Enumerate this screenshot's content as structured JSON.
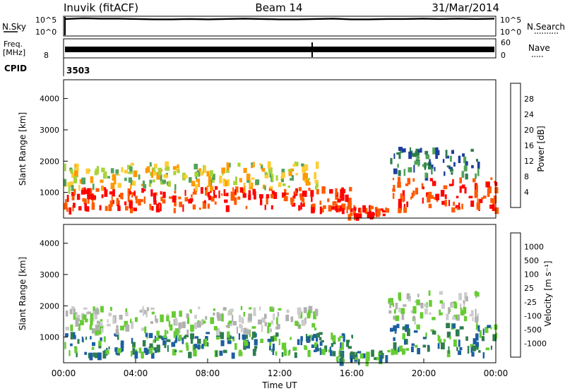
{
  "header": {
    "station": "Inuvik (fitACF)",
    "beam": "Beam 14",
    "date": "31/Mar/2014"
  },
  "colors": {
    "power_scale": [
      "#0000ff",
      "#1c3e9c",
      "#2e7d4e",
      "#52a35a",
      "#a8d33a",
      "#ffcc33",
      "#ff9900",
      "#ff5a00",
      "#ff0000"
    ],
    "velocity_scale": [
      "#ff0000",
      "#ff6600",
      "#ff9900",
      "#cccccc",
      "#b0b0b0",
      "#66cc33",
      "#2e7d4e",
      "#1c5fa0",
      "#1c3e9c"
    ]
  },
  "chart_data": [
    {
      "type": "line",
      "title": "",
      "xlabel": "",
      "ylabel_left": "N.Sky",
      "ylabel_right": "N.Search",
      "y_ticks_left": [
        "10^5",
        "10^0"
      ],
      "y_ticks_right": [
        "10^5",
        "10^0"
      ],
      "series": [
        {
          "name": "N.Sky",
          "values": [
            5.1,
            5.3,
            5.2,
            5.2,
            5.1,
            5.0,
            5.0,
            5.1,
            5.0,
            5.1,
            5.2,
            5.1,
            5.0,
            5.0,
            5.1,
            5.2,
            5.0,
            5.0,
            5.1,
            5.1,
            5.2,
            5.1,
            5.2,
            5.1,
            5.2
          ]
        }
      ]
    },
    {
      "type": "line",
      "ylabel_left": "Freq.",
      "ylabel_left_unit": "[MHz]",
      "y_ticks_left": [
        "8"
      ],
      "ylabel_right": "Nave",
      "y_ticks_right": [
        "60",
        "0"
      ],
      "series": [
        {
          "name": "Freq.",
          "values": [
            10.5,
            10.5,
            10.5,
            10.5,
            10.5,
            10.5,
            10.5,
            10.5,
            10.5
          ]
        }
      ]
    },
    {
      "type": "table",
      "label": "CPID",
      "value": "3503"
    },
    {
      "type": "heatmap",
      "ylabel": "Slant Range [km]",
      "y_ticks": [
        "1000",
        "2000",
        "3000",
        "4000"
      ],
      "ylim": [
        180,
        4600
      ],
      "colorbar_label": "Power [dB]",
      "colorbar_ticks": [
        "4",
        "8",
        "12",
        "16",
        "20",
        "24",
        "28"
      ],
      "bands": [
        {
          "range_km": [
            500,
            1200
          ],
          "hours": [
            0,
            16
          ],
          "level": "high"
        },
        {
          "range_km": [
            1200,
            2000
          ],
          "hours": [
            0,
            14
          ],
          "level": "mid"
        },
        {
          "range_km": [
            300,
            600
          ],
          "hours": [
            15,
            18
          ],
          "level": "high"
        },
        {
          "range_km": [
            500,
            1500
          ],
          "hours": [
            18,
            24
          ],
          "level": "high"
        },
        {
          "range_km": [
            1600,
            2500
          ],
          "hours": [
            18,
            23
          ],
          "level": "low"
        }
      ]
    },
    {
      "type": "heatmap",
      "ylabel": "Slant Range [km]",
      "y_ticks": [
        "1000",
        "2000",
        "3000",
        "4000"
      ],
      "ylim": [
        180,
        4600
      ],
      "colorbar_label": "Velocity [m s⁻¹]",
      "colorbar_ticks": [
        "1000",
        "500",
        "100",
        "25",
        "-25",
        "-100",
        "-500",
        "-1000"
      ],
      "xlabel": "Time UT",
      "x_ticks": [
        "00:00",
        "04:00",
        "08:00",
        "12:00",
        "16:00",
        "20:00",
        "00:00"
      ]
    }
  ]
}
